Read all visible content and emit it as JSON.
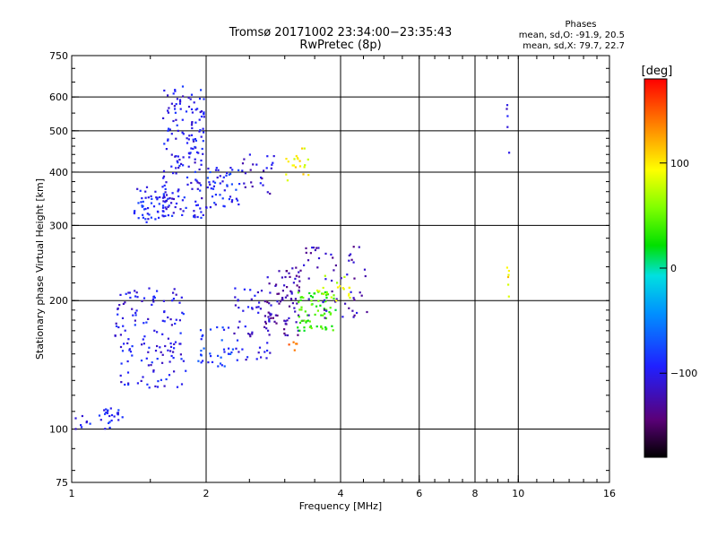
{
  "chart_data": {
    "type": "scatter",
    "title": "Tromsø 20171002 23:34:00−23:35:43",
    "subtitle": "RwPretec (8p)",
    "stats": {
      "heading": "Phases",
      "line_o": "mean, sd,O: -91.9, 20.5",
      "line_x": "mean, sd,X:  79.7, 22.7"
    },
    "xlabel": "Frequency [MHz]",
    "ylabel": "Stationary phase Virtual Height [km]",
    "x_scale": "log",
    "y_scale": "log",
    "xlim": [
      1,
      16
    ],
    "ylim": [
      75,
      750
    ],
    "x_ticks": [
      1,
      2,
      4,
      6,
      8,
      10,
      16
    ],
    "x_tick_labels": [
      "1",
      "2",
      "4",
      "6",
      "8",
      "10",
      "16"
    ],
    "y_ticks": [
      75,
      100,
      200,
      300,
      400,
      500,
      600,
      750
    ],
    "y_tick_labels": [
      "75",
      "100",
      "200",
      "300",
      "400",
      "500",
      "600",
      "750"
    ],
    "grid_x": [
      2,
      4,
      6,
      8,
      10
    ],
    "grid_y": [
      100,
      200,
      300,
      400,
      500,
      600
    ],
    "grid": true,
    "colorbar": {
      "label": "[deg]",
      "range": [
        -180,
        180
      ],
      "ticks": [
        100,
        0,
        -100
      ],
      "tick_labels": [
        "100",
        "0",
        "−100"
      ],
      "colormap": "rainbow"
    },
    "series": [
      {
        "x_range": [
          1.38,
          1.66
        ],
        "y_range": [
          305,
          370
        ],
        "phase": -95,
        "count": 60
      },
      {
        "x_range": [
          1.6,
          1.98
        ],
        "y_range": [
          310,
          640
        ],
        "phase": -100,
        "count": 170
      },
      {
        "x_range": [
          2.0,
          2.4
        ],
        "y_range": [
          330,
          420
        ],
        "phase": -90,
        "count": 50
      },
      {
        "x_range": [
          2.4,
          2.85
        ],
        "y_range": [
          355,
          440
        ],
        "phase": -110,
        "count": 25
      },
      {
        "x_range": [
          3.0,
          3.4
        ],
        "y_range": [
          380,
          460
        ],
        "phase": 95,
        "count": 20
      },
      {
        "x_range": [
          1.25,
          1.8
        ],
        "y_range": [
          125,
          215
        ],
        "phase": -100,
        "count": 140
      },
      {
        "x_range": [
          1.15,
          1.3
        ],
        "y_range": [
          100,
          112
        ],
        "phase": -95,
        "count": 25
      },
      {
        "x_range": [
          1.02,
          1.12
        ],
        "y_range": [
          100,
          108
        ],
        "phase": -100,
        "count": 8
      },
      {
        "x_range": [
          1.9,
          2.3
        ],
        "y_range": [
          140,
          175
        ],
        "phase": -80,
        "count": 35
      },
      {
        "x_range": [
          2.3,
          2.8
        ],
        "y_range": [
          145,
          215
        ],
        "phase": -105,
        "count": 55
      },
      {
        "x_range": [
          2.7,
          3.3
        ],
        "y_range": [
          165,
          240
        ],
        "phase": -125,
        "count": 80
      },
      {
        "x_range": [
          3.2,
          3.9
        ],
        "y_range": [
          170,
          210
        ],
        "phase": 35,
        "count": 70
      },
      {
        "x_range": [
          3.3,
          4.6
        ],
        "y_range": [
          180,
          270
        ],
        "phase": -120,
        "count": 55
      },
      {
        "x_range": [
          3.5,
          4.2
        ],
        "y_range": [
          200,
          230
        ],
        "phase": 80,
        "count": 20
      },
      {
        "x_range": [
          3.0,
          3.2
        ],
        "y_range": [
          150,
          160
        ],
        "phase": 140,
        "count": 5
      },
      {
        "x_range": [
          9.4,
          9.55
        ],
        "y_range": [
          200,
          240
        ],
        "phase": 100,
        "count": 6
      },
      {
        "x_range": [
          9.4,
          9.55
        ],
        "y_range": [
          420,
          580
        ],
        "phase": -105,
        "count": 5
      }
    ]
  }
}
